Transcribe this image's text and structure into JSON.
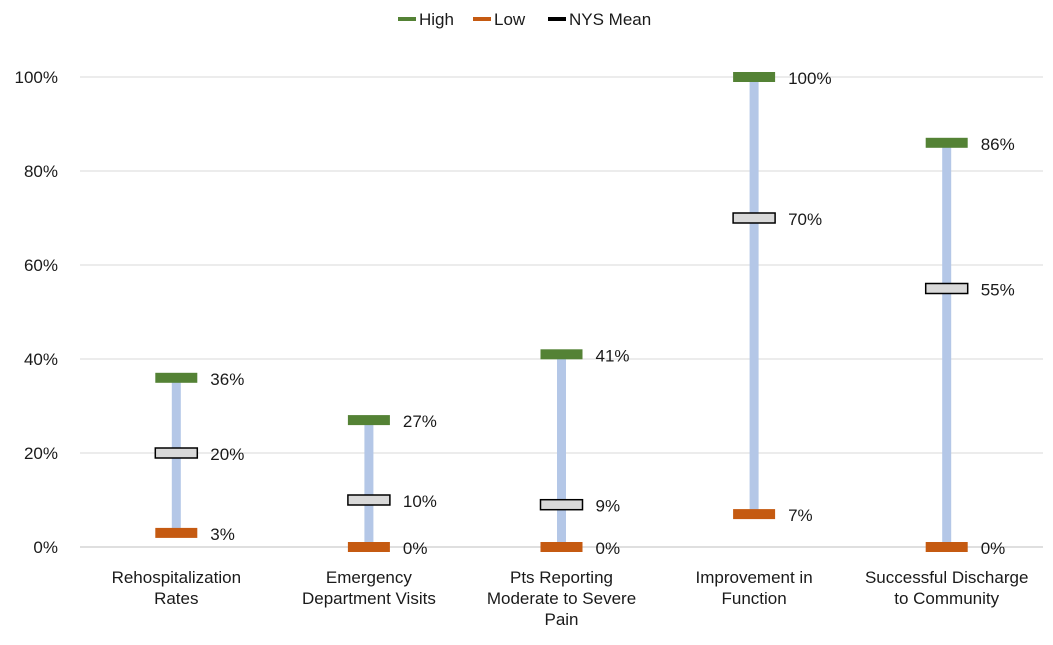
{
  "chart_data": {
    "type": "range",
    "title": "",
    "xlabel": "",
    "ylabel": "",
    "ylim": [
      0,
      100
    ],
    "yticks": [
      0,
      20,
      40,
      60,
      80,
      100
    ],
    "ytick_labels": [
      "0%",
      "20%",
      "40%",
      "60%",
      "80%",
      "100%"
    ],
    "grid": true,
    "legend_position": "top-center",
    "categories": [
      [
        "Rehospitalization",
        "Rates"
      ],
      [
        "Emergency",
        "Department Visits"
      ],
      [
        "Pts Reporting",
        "Moderate to Severe",
        "Pain"
      ],
      [
        "Improvement in",
        "Function"
      ],
      [
        "Successful Discharge",
        "to Community"
      ]
    ],
    "series": [
      {
        "name": "High",
        "color": "#548235",
        "values": [
          36,
          27,
          41,
          100,
          86
        ],
        "labels": [
          "36%",
          "27%",
          "41%",
          "100%",
          "86%"
        ]
      },
      {
        "name": "Low",
        "color": "#c55a11",
        "values": [
          3,
          0,
          0,
          7,
          0
        ],
        "labels": [
          "3%",
          "0%",
          "0%",
          "7%",
          "0%"
        ]
      },
      {
        "name": "NYS Mean",
        "color": "#d9d9d9",
        "values": [
          20,
          10,
          9,
          70,
          55
        ],
        "labels": [
          "20%",
          "10%",
          "9%",
          "70%",
          "55%"
        ]
      }
    ],
    "range_bar_color": "#b4c7e7"
  }
}
